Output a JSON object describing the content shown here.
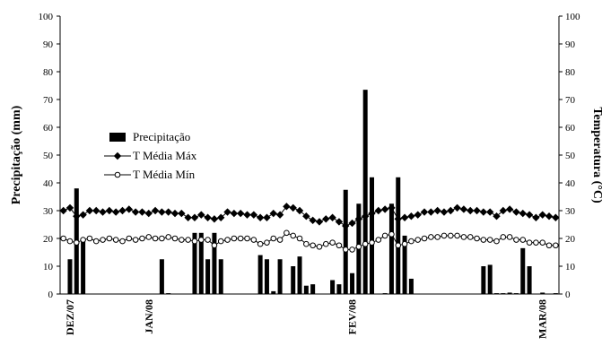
{
  "chart_data": {
    "type": "bar",
    "ylabel": "Precipitação (mm)",
    "y2label": "Temperatura (°C)",
    "categories": [
      null,
      "DEZ/07",
      null,
      null,
      null,
      null,
      null,
      null,
      null,
      null,
      null,
      null,
      null,
      "JAN/08",
      null,
      null,
      null,
      null,
      null,
      null,
      null,
      null,
      null,
      null,
      null,
      null,
      null,
      null,
      null,
      null,
      null,
      null,
      null,
      null,
      null,
      null,
      null,
      null,
      null,
      null,
      null,
      null,
      null,
      null,
      "FEV/08",
      null,
      null,
      null,
      null,
      null,
      null,
      null,
      null,
      null,
      null,
      null,
      null,
      null,
      null,
      null,
      null,
      null,
      null,
      null,
      null,
      null,
      null,
      null,
      null,
      null,
      null,
      null,
      null,
      "MAR/08",
      null,
      null
    ],
    "ylim": [
      0,
      100
    ],
    "yticks": [
      0,
      10,
      20,
      30,
      40,
      50,
      60,
      70,
      80,
      90,
      100
    ],
    "y2lim": [
      0,
      100
    ],
    "y2ticks": [
      0,
      10,
      20,
      30,
      40,
      50,
      60,
      70,
      80,
      90,
      100
    ],
    "legend": "upper left",
    "series": [
      {
        "name": "Precipitação",
        "type": "bar",
        "color": "#000000",
        "values": [
          0,
          12.5,
          38,
          19.5,
          0,
          0,
          0,
          0,
          0,
          0,
          0,
          0,
          0,
          0,
          0,
          12.5,
          0.3,
          0,
          0,
          0,
          22,
          22,
          12.5,
          22,
          12.5,
          0,
          0,
          0,
          0,
          0,
          14,
          12.5,
          1,
          12.5,
          0,
          10,
          13.5,
          3,
          3.5,
          0,
          0,
          5,
          3.5,
          37.5,
          7.5,
          32.5,
          73.5,
          42,
          0,
          0.3,
          32.5,
          42,
          21,
          5.5,
          0,
          0,
          0,
          0,
          0,
          0,
          0,
          0,
          0,
          0,
          10,
          10.5,
          0.3,
          0.3,
          0.5,
          0.3,
          16.5,
          10,
          0,
          0.5,
          0,
          0.3
        ]
      },
      {
        "name": "T Média Máx",
        "type": "line",
        "axis": "y2",
        "color": "#000000",
        "marker": "diamond",
        "marker_fill": "#000000",
        "values": [
          30,
          31,
          28,
          28.5,
          30,
          30,
          29.5,
          30,
          29.5,
          30,
          30.5,
          29.5,
          29.5,
          29,
          30,
          29.5,
          29.5,
          29,
          29,
          27.5,
          27.5,
          28.5,
          27.5,
          27,
          27.5,
          29.5,
          29,
          29,
          28.5,
          28.5,
          27.5,
          27.5,
          29,
          28.5,
          31.5,
          31,
          30,
          28,
          26.5,
          26,
          27,
          27.5,
          26,
          24.5,
          25.5,
          27,
          28,
          29,
          30,
          30.5,
          31,
          27,
          27.5,
          28,
          28.5,
          29.5,
          29.5,
          30,
          29.5,
          30,
          31,
          30.5,
          30,
          30,
          29.5,
          29.5,
          28,
          30,
          30.5,
          29.5,
          29,
          28.5,
          27.5,
          28.5,
          28,
          27.5
        ]
      },
      {
        "name": "T Média Mín",
        "type": "line",
        "axis": "y2",
        "color": "#000000",
        "marker": "circle",
        "marker_fill": "#ffffff",
        "values": [
          20,
          19,
          18.5,
          19.5,
          20,
          19,
          19.5,
          20,
          19.5,
          19,
          20,
          19.5,
          20,
          20.5,
          20,
          20,
          20.5,
          20,
          19.5,
          19.5,
          19,
          19.5,
          19.5,
          17.5,
          19,
          19.5,
          20,
          20,
          20,
          19.5,
          18,
          18.5,
          20,
          19.5,
          22,
          21,
          20,
          18,
          17.5,
          17,
          18,
          18.5,
          17.5,
          16,
          16,
          17,
          18,
          18.5,
          19.5,
          21,
          21.5,
          17.5,
          18,
          19,
          19.5,
          20,
          20.5,
          20.5,
          21,
          21,
          21,
          20.5,
          20.5,
          20,
          19.5,
          19.5,
          19,
          20.5,
          20.5,
          19.5,
          19.5,
          18.5,
          18.5,
          18.5,
          17.5,
          17.5
        ]
      }
    ]
  }
}
